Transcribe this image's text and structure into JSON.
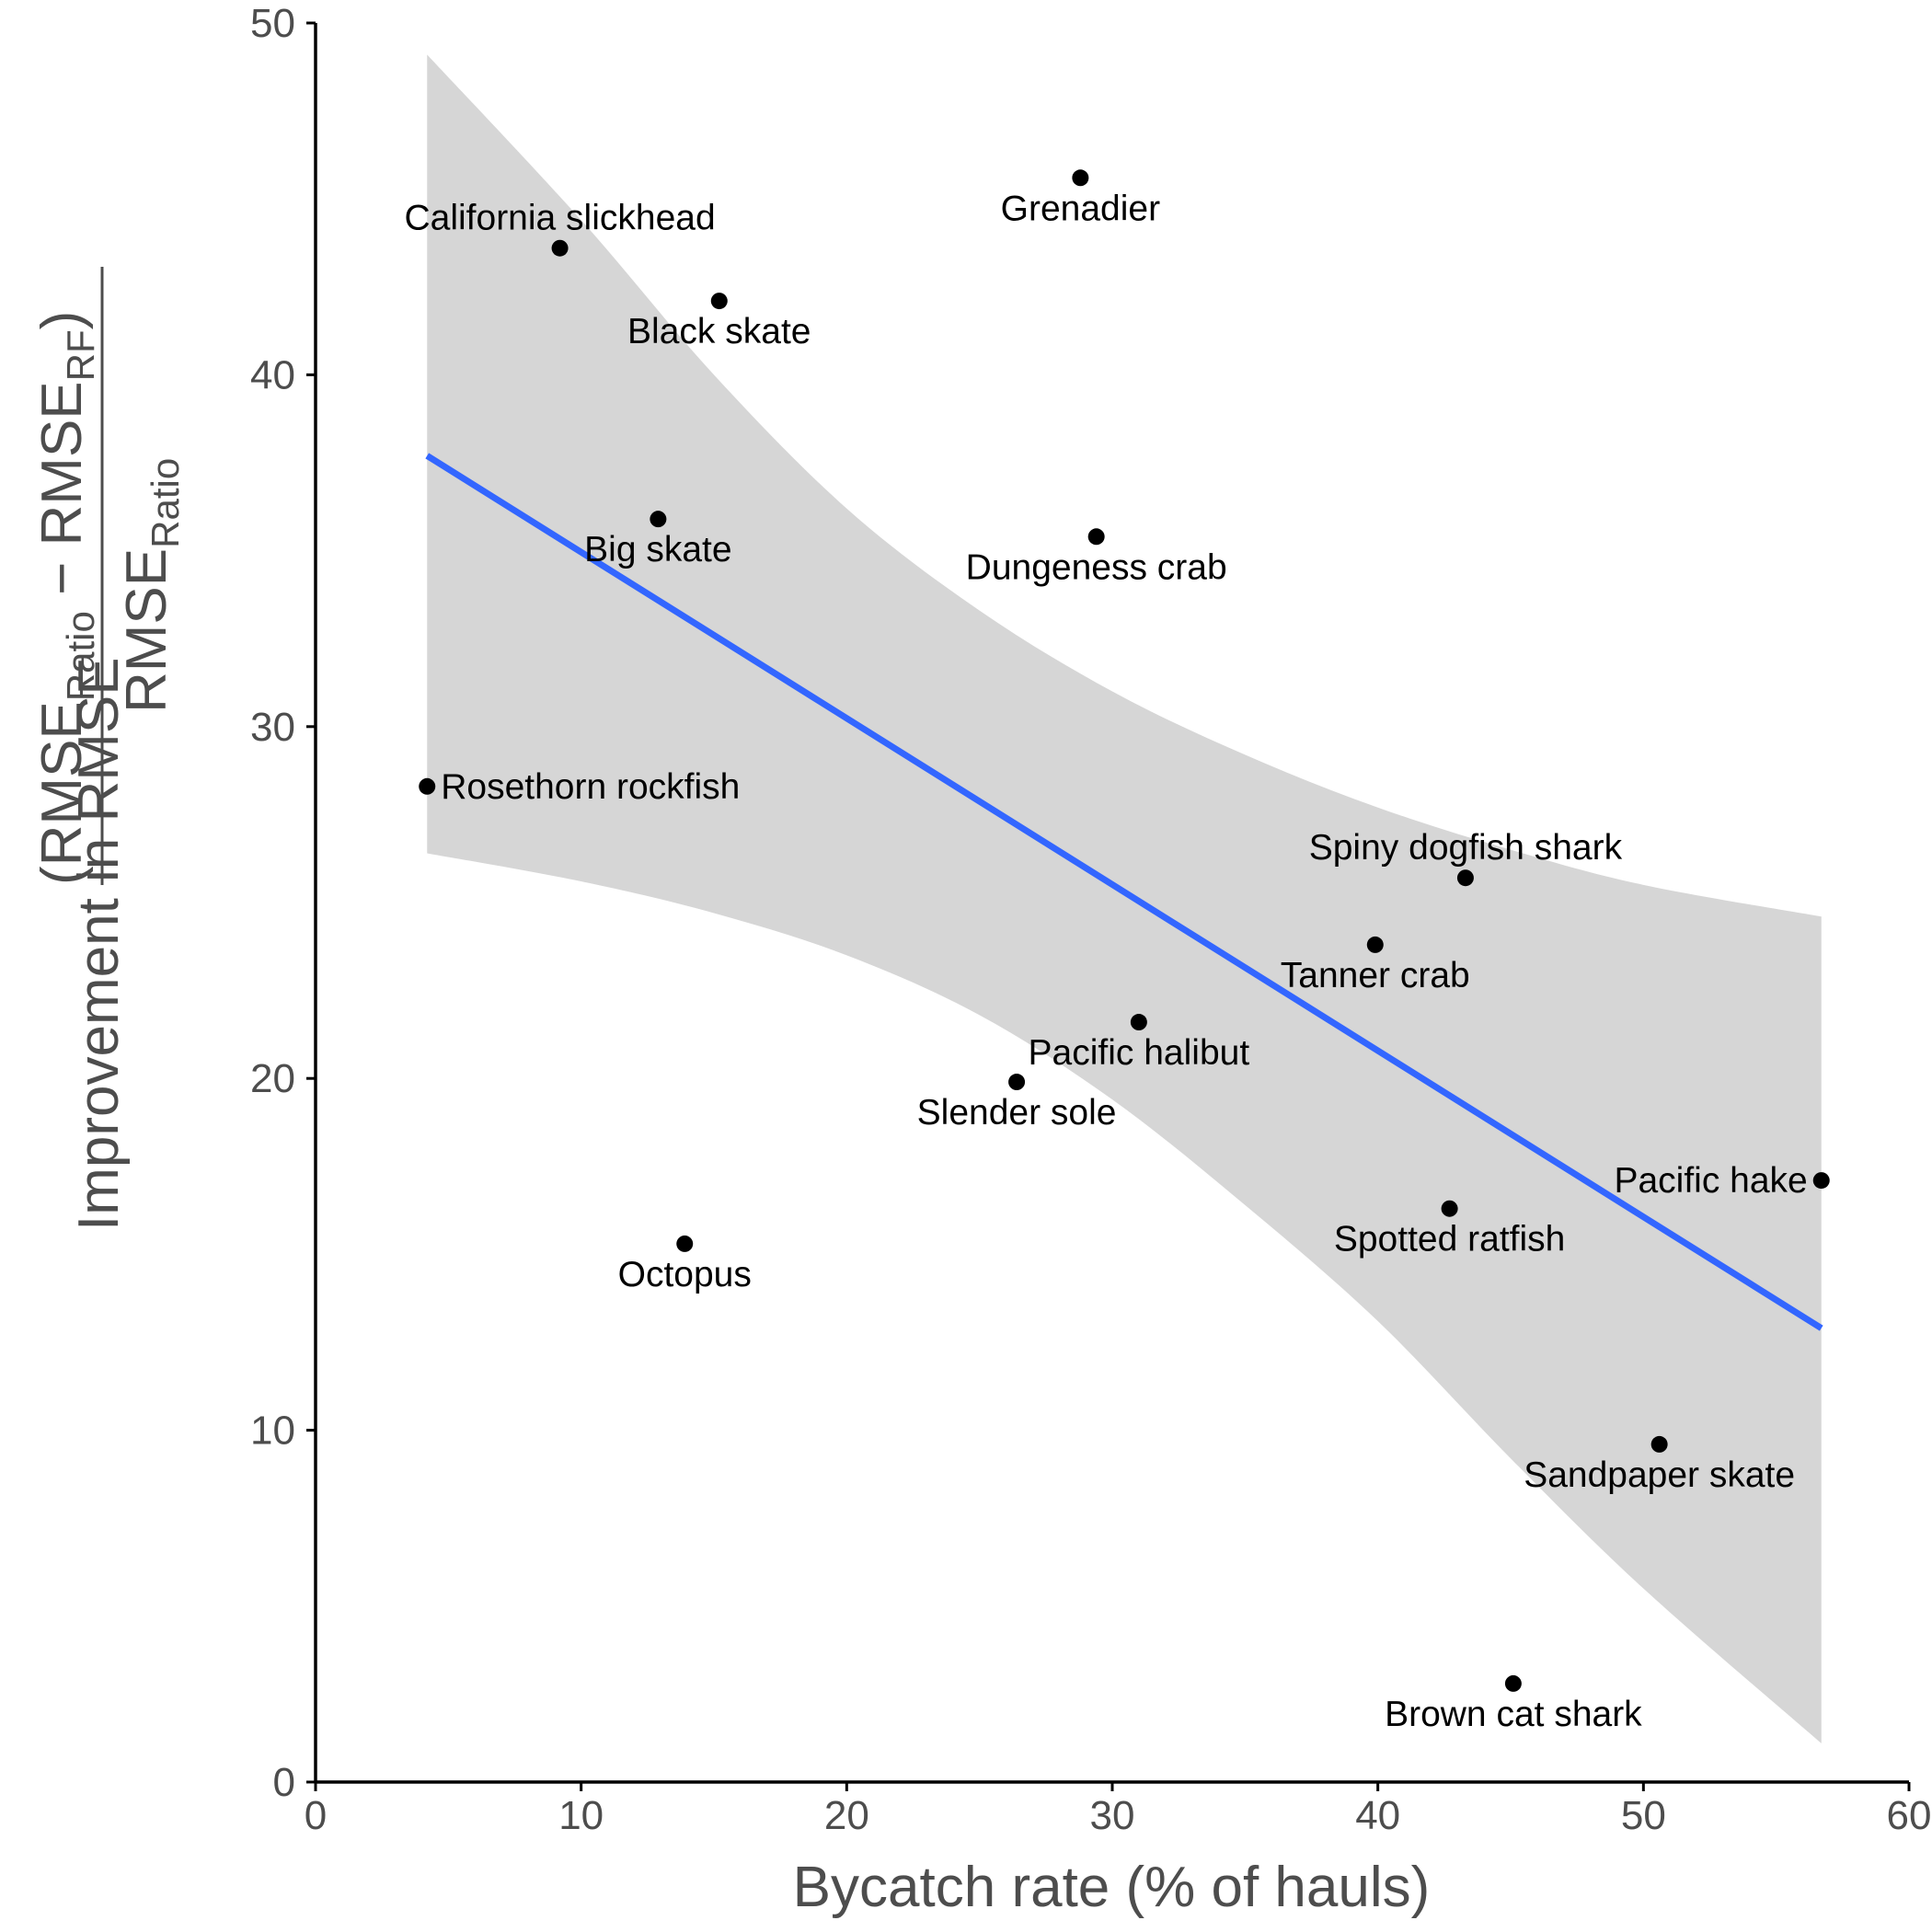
{
  "chart_data": {
    "type": "scatter",
    "title": "",
    "xlabel": "Bycatch rate (% of hauls)",
    "ylabel": {
      "prefix": "Improvement in RMSE",
      "numerator": {
        "open_paren": "(",
        "term1": "RMSE",
        "term1_sub": "Ratio",
        "minus": " − ",
        "term2": "RMSE",
        "term2_sub": "RF",
        "close_paren": ")"
      },
      "denominator": {
        "term": "RMSE",
        "term_sub": "Ratio"
      }
    },
    "xlim": [
      0,
      60
    ],
    "ylim": [
      0,
      50
    ],
    "x_ticks": [
      0,
      10,
      20,
      30,
      40,
      50,
      60
    ],
    "y_ticks": [
      0,
      10,
      20,
      30,
      40,
      50
    ],
    "grid": false,
    "legend": "none",
    "point_color": "#000000",
    "points": [
      {
        "label": "Grenadier",
        "x": 28.8,
        "y": 45.6,
        "label_pos": "below"
      },
      {
        "label": "California slickhead",
        "x": 9.2,
        "y": 43.6,
        "label_pos": "above"
      },
      {
        "label": "Black skate",
        "x": 15.2,
        "y": 42.1,
        "label_pos": "below"
      },
      {
        "label": "Big skate",
        "x": 12.9,
        "y": 35.9,
        "label_pos": "below"
      },
      {
        "label": "Dungeness crab",
        "x": 29.4,
        "y": 35.4,
        "label_pos": "below"
      },
      {
        "label": "Rosethorn rockfish",
        "x": 4.2,
        "y": 28.3,
        "label_pos": "right"
      },
      {
        "label": "Spiny dogfish shark",
        "x": 43.3,
        "y": 25.7,
        "label_pos": "above"
      },
      {
        "label": "Tanner crab",
        "x": 39.9,
        "y": 23.8,
        "label_pos": "below"
      },
      {
        "label": "Pacific halibut",
        "x": 31.0,
        "y": 21.6,
        "label_pos": "below"
      },
      {
        "label": "Slender sole",
        "x": 26.4,
        "y": 19.9,
        "label_pos": "below"
      },
      {
        "label": "Pacific hake",
        "x": 56.7,
        "y": 17.1,
        "label_pos": "left"
      },
      {
        "label": "Spotted ratfish",
        "x": 42.7,
        "y": 16.3,
        "label_pos": "below"
      },
      {
        "label": "Octopus",
        "x": 13.9,
        "y": 15.3,
        "label_pos": "below"
      },
      {
        "label": "Sandpaper skate",
        "x": 50.6,
        "y": 9.6,
        "label_pos": "below"
      },
      {
        "label": "Brown cat shark",
        "x": 45.1,
        "y": 2.8,
        "label_pos": "below"
      }
    ],
    "fit": {
      "method": "linear",
      "color": "#3366FF",
      "ribbon_color": "#d6d6d6",
      "x_range": [
        4.2,
        56.7
      ],
      "line": [
        [
          4.2,
          37.7
        ],
        [
          56.7,
          12.9
        ]
      ],
      "ci_upper": [
        [
          4.2,
          49.1
        ],
        [
          10,
          44.4
        ],
        [
          15,
          40.0
        ],
        [
          20,
          36.2
        ],
        [
          25,
          33.3
        ],
        [
          30,
          31.0
        ],
        [
          35,
          29.2
        ],
        [
          40,
          27.7
        ],
        [
          45,
          26.5
        ],
        [
          50,
          25.5
        ],
        [
          56.7,
          24.6
        ]
      ],
      "ci_lower": [
        [
          4.2,
          26.4
        ],
        [
          10,
          25.6
        ],
        [
          15,
          24.7
        ],
        [
          20,
          23.5
        ],
        [
          25,
          21.8
        ],
        [
          30,
          19.4
        ],
        [
          35,
          16.4
        ],
        [
          40,
          13.1
        ],
        [
          45,
          9.2
        ],
        [
          50,
          5.5
        ],
        [
          56.7,
          1.1
        ]
      ]
    }
  }
}
